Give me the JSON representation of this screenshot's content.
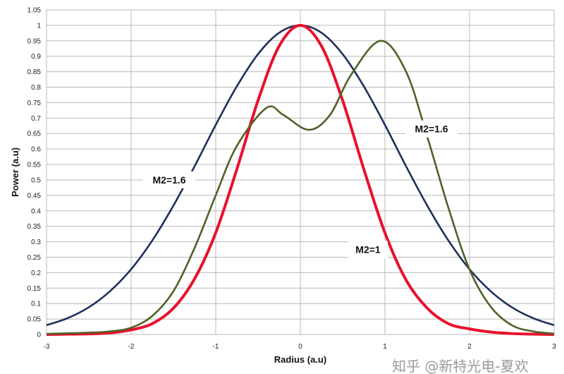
{
  "chart_data": {
    "type": "line",
    "title": "",
    "xlabel": "Radius (a.u)",
    "ylabel": "Power (a.u)",
    "xlim": [
      -3,
      3
    ],
    "ylim": [
      0,
      1.05
    ],
    "grid": true,
    "x_ticks": [
      "-3",
      "-2",
      "-1",
      "0",
      "1",
      "2",
      "3"
    ],
    "y_ticks": [
      "0",
      "0.05",
      "0.1",
      "0.15",
      "0.2",
      "0.25",
      "0.3",
      "0.35",
      "0.4",
      "0.45",
      "0.5",
      "0.55",
      "0.6",
      "0.65",
      "0.7",
      "0.75",
      "0.8",
      "0.85",
      "0.9",
      "0.95",
      "1",
      "1.05"
    ],
    "series": [
      {
        "color": "#1f2f5c",
        "x": [
          -3,
          -2.75,
          -2.5,
          -2.25,
          -2,
          -1.75,
          -1.5,
          -1.25,
          -1,
          -0.75,
          -0.5,
          -0.25,
          0,
          0.25,
          0.5,
          0.75,
          1,
          1.25,
          1.5,
          1.75,
          2,
          2.25,
          2.5,
          2.75,
          3
        ],
        "y": [
          0.03,
          0.053,
          0.088,
          0.14,
          0.211,
          0.304,
          0.417,
          0.544,
          0.678,
          0.803,
          0.907,
          0.976,
          1,
          0.976,
          0.907,
          0.803,
          0.678,
          0.544,
          0.417,
          0.304,
          0.211,
          0.14,
          0.088,
          0.053,
          0.03
        ]
      },
      {
        "color": "#e8112d",
        "x": [
          -3,
          -2.75,
          -2.5,
          -2.25,
          -2,
          -1.75,
          -1.5,
          -1.25,
          -1,
          -0.75,
          -0.5,
          -0.25,
          0,
          0.25,
          0.5,
          0.75,
          1,
          1.25,
          1.5,
          1.75,
          2,
          2.25,
          2.5,
          2.75,
          3
        ],
        "y": [
          0.0,
          0.001,
          0.002,
          0.005,
          0.015,
          0.035,
          0.085,
          0.18,
          0.329,
          0.535,
          0.757,
          0.933,
          1,
          0.933,
          0.757,
          0.535,
          0.329,
          0.176,
          0.085,
          0.035,
          0.018,
          0.008,
          0.003,
          0.001,
          0.0
        ]
      },
      {
        "color": "#4f6228",
        "x": [
          -3,
          -2.75,
          -2.5,
          -2.25,
          -2,
          -1.75,
          -1.5,
          -1.25,
          -1,
          -0.75,
          -0.4,
          -0.2,
          0.1,
          0.35,
          0.6,
          0.95,
          1.25,
          1.5,
          1.75,
          2,
          2.25,
          2.5,
          2.75,
          3
        ],
        "y": [
          0.002,
          0.004,
          0.006,
          0.01,
          0.022,
          0.06,
          0.14,
          0.28,
          0.45,
          0.61,
          0.733,
          0.71,
          0.662,
          0.71,
          0.84,
          0.95,
          0.85,
          0.64,
          0.41,
          0.21,
          0.09,
          0.03,
          0.01,
          0.003
        ]
      }
    ],
    "annotations": [
      {
        "text": "M2=1.6",
        "x": -1.55,
        "y": 0.5
      },
      {
        "text": "M2=1.6",
        "x": 1.55,
        "y": 0.665
      },
      {
        "text": "M2=1",
        "x": 0.8,
        "y": 0.275
      }
    ]
  },
  "watermark": "知乎 @新特光电-夏欢"
}
